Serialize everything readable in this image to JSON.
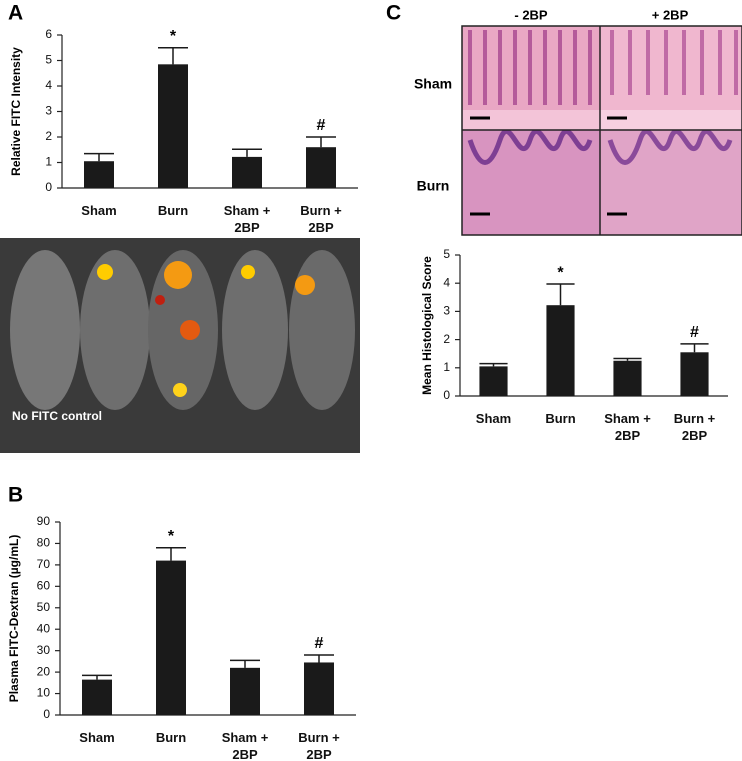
{
  "panels": {
    "a": "A",
    "b": "B",
    "c": "C"
  },
  "photo": {
    "label": "No FITC control"
  },
  "histology": {
    "columns": [
      "- 2BP",
      "+ 2BP"
    ],
    "rows": [
      "Sham",
      "Burn"
    ]
  },
  "chart_data": [
    {
      "type": "bar",
      "y_label": "Relative FITC Intensity",
      "categories": [
        "Sham",
        "Burn",
        "Sham + 2BP",
        "Burn + 2BP"
      ],
      "values": [
        1.05,
        4.85,
        1.22,
        1.6
      ],
      "errors": [
        0.3,
        0.65,
        0.3,
        0.4
      ],
      "annotations": [
        null,
        "*",
        null,
        "#"
      ],
      "color": "#1a1a1a",
      "ylim": [
        0,
        6
      ],
      "yticks": [
        0,
        1,
        2,
        3,
        4,
        5,
        6
      ]
    },
    {
      "type": "bar",
      "y_label": "Plasma FITC-Dextran (µg/mL)",
      "categories": [
        "Sham",
        "Burn",
        "Sham + 2BP",
        "Burn + 2BP"
      ],
      "values": [
        16.5,
        72,
        22,
        24.5
      ],
      "errors": [
        2,
        6,
        3.5,
        3.5
      ],
      "annotations": [
        null,
        "*",
        null,
        "#"
      ],
      "color": "#1a1a1a",
      "ylim": [
        0,
        90
      ],
      "yticks": [
        0,
        10,
        20,
        30,
        40,
        50,
        60,
        70,
        80,
        90
      ]
    },
    {
      "type": "bar",
      "y_label": "Mean Histological  Score",
      "categories": [
        "Sham",
        "Burn",
        "Sham + 2BP",
        "Burn + 2BP"
      ],
      "values": [
        1.05,
        3.22,
        1.25,
        1.55
      ],
      "errors": [
        0.1,
        0.75,
        0.08,
        0.3
      ],
      "annotations": [
        null,
        "*",
        null,
        "#"
      ],
      "color": "#1a1a1a",
      "ylim": [
        0,
        5
      ],
      "yticks": [
        0,
        1,
        2,
        3,
        4,
        5
      ]
    }
  ]
}
